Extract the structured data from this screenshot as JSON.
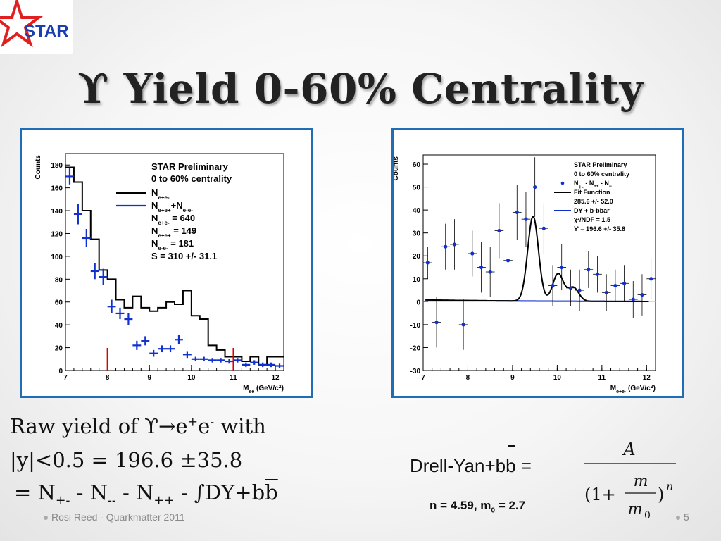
{
  "slide": {
    "logo_text": "STAR",
    "title": "ϒ Yield 0-60% Centrality",
    "footer": "Rosi Reed - Quarkmatter 2011",
    "page_number": "5"
  },
  "text_block": {
    "line1_prefix": "Raw yield of ϒ→e",
    "line1_sup1": "+",
    "line1_mid": "e",
    "line1_sup2": "-",
    "line1_suffix": " with",
    "line2": "|y|<0.5 = 196.6 ±35.8",
    "line3_a": "= N",
    "line3_sub1": "+-",
    "line3_b": " - N",
    "line3_sub2": "--",
    "line3_c": " - N",
    "line3_sub3": "++",
    "line3_d": " - ∫DY+b",
    "line3_e": "b"
  },
  "formula": {
    "label_prefix": "Drell-Yan+b",
    "label_bbar": "b",
    "label_suffix": " =",
    "numerator": "A",
    "denominator_open": "(1+",
    "denominator_m": "m",
    "denominator_m0": "m",
    "denominator_m0_sub": "0",
    "denominator_close": ")",
    "exponent": "n",
    "params_prefix": "n = 4.59, m",
    "params_sub": "0",
    "params_suffix": " = 2.7"
  },
  "chart_data": [
    {
      "type": "histogram",
      "ylabel": "Counts",
      "xlabel": "M",
      "xlabel_sub": "ee",
      "xlabel_unit": " (GeV/c",
      "xlabel_unit_sup": "2",
      "xlabel_unit_end": ")",
      "xlim": [
        7,
        12.2
      ],
      "ylim": [
        0,
        190
      ],
      "xticks": [
        7,
        8,
        9,
        10,
        11,
        12
      ],
      "yticks": [
        0,
        20,
        40,
        60,
        80,
        100,
        120,
        140,
        160,
        180
      ],
      "legend": {
        "header1": "STAR Preliminary",
        "header2": "0 to 60% centrality",
        "entries": [
          {
            "name": "N",
            "sub": "e+e-",
            "color": "#000000"
          },
          {
            "name": "N",
            "sub": "e+e+",
            "name2": "+N",
            "sub2": "e-e-",
            "color": "#1030d0"
          }
        ],
        "lines": [
          {
            "prefix": "N",
            "sub": "e+e-",
            "suffix": " = 640"
          },
          {
            "prefix": "N",
            "sub": "e+e+",
            "suffix": " = 149"
          },
          {
            "prefix": "N",
            "sub": "e-e-",
            "suffix": " = 181"
          },
          {
            "prefix": "S = 310 +/- 31.1",
            "sub": "",
            "suffix": ""
          }
        ]
      },
      "bin_width": 0.2,
      "unlike_sign": {
        "x_edges_start": 7.0,
        "values": [
          178,
          165,
          140,
          115,
          88,
          80,
          62,
          55,
          65,
          55,
          52,
          55,
          60,
          58,
          70,
          48,
          45,
          22,
          18,
          12,
          12,
          8,
          12,
          5,
          12,
          12
        ],
        "color": "#000000"
      },
      "like_sign": {
        "x": [
          7.1,
          7.3,
          7.5,
          7.7,
          7.9,
          8.1,
          8.3,
          8.5,
          8.7,
          8.9,
          9.1,
          9.3,
          9.5,
          9.7,
          9.9,
          10.1,
          10.3,
          10.5,
          10.7,
          10.9,
          11.1,
          11.3,
          11.5,
          11.7,
          11.9,
          12.1
        ],
        "y": [
          170,
          137,
          116,
          87,
          82,
          56,
          50,
          45,
          22,
          26,
          15,
          19,
          19,
          27,
          14,
          10,
          10,
          9,
          9,
          8,
          9,
          5,
          7,
          5,
          5,
          4
        ],
        "err": [
          7,
          9,
          8,
          7,
          7,
          6,
          5,
          5,
          4,
          4,
          3,
          3,
          3,
          4,
          3,
          2,
          2,
          2,
          2,
          2,
          2,
          2,
          2,
          2,
          2,
          2
        ],
        "color": "#1030d0"
      },
      "markers": {
        "x": [
          8.0,
          11.0
        ],
        "color": "#dd0000"
      }
    },
    {
      "type": "scatter",
      "ylabel": "Counts",
      "xlabel": "M",
      "xlabel_sub": "e+e-",
      "xlabel_unit": " (GeV/c",
      "xlabel_unit_sup": "2",
      "xlabel_unit_end": ")",
      "xlim": [
        7,
        12.2
      ],
      "ylim": [
        -30,
        64
      ],
      "xticks": [
        7,
        8,
        9,
        10,
        11,
        12
      ],
      "yticks": [
        -30,
        -20,
        -10,
        0,
        10,
        20,
        30,
        40,
        50,
        60
      ],
      "legend": {
        "header1": "STAR Preliminary",
        "header2": "0 to 60% centrality",
        "entries": [
          {
            "marker": "dot",
            "label": "N",
            "sub": "+-",
            "label2": " - N",
            "sub2": "++",
            "label3": " - N",
            "sub3": "--",
            "color": "#1030d0"
          },
          {
            "marker": "line",
            "label": "Fit Function",
            "color": "#000000"
          },
          {
            "marker": "none",
            "label": "285.6 +/- 52.0"
          },
          {
            "marker": "line",
            "label": "DY + b-bbar",
            "color": "#1030d0"
          },
          {
            "marker": "none",
            "label": "χ²/NDF = 1.5"
          },
          {
            "marker": "none",
            "label": "ϒ = 196.6 +/- 35.8"
          }
        ]
      },
      "data_points": {
        "x": [
          7.1,
          7.3,
          7.5,
          7.7,
          7.9,
          8.1,
          8.3,
          8.5,
          8.7,
          8.9,
          9.1,
          9.3,
          9.5,
          9.7,
          9.9,
          10.1,
          10.3,
          10.5,
          10.7,
          10.9,
          11.1,
          11.3,
          11.5,
          11.7,
          11.9,
          12.1
        ],
        "y": [
          17,
          -9,
          24,
          25,
          -10,
          21,
          15,
          13,
          31,
          18,
          39,
          36,
          50,
          32,
          7,
          15,
          6,
          5,
          14,
          12,
          4,
          7,
          8,
          1,
          3,
          10
        ],
        "err": [
          7,
          11,
          10,
          11,
          11,
          10,
          11,
          11,
          12,
          10,
          12,
          12,
          13,
          11,
          9,
          10,
          8,
          9,
          8,
          8,
          8,
          7,
          8,
          8,
          9,
          9
        ],
        "color": "#1030d0"
      },
      "fit": {
        "A": 285.6,
        "n": 4.59,
        "m0": 2.7,
        "upsilon_1S": 9.46,
        "upsilon_2S": 10.02,
        "upsilon_3S": 10.36
      }
    }
  ]
}
